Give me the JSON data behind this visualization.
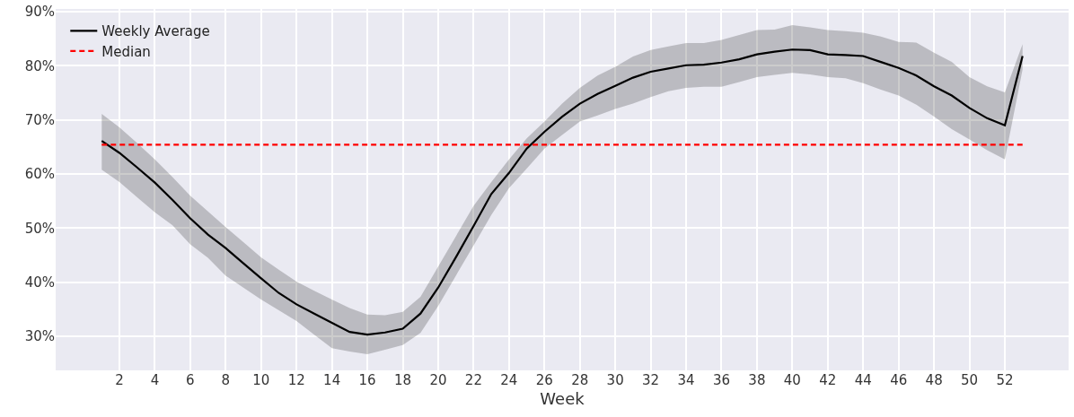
{
  "chart_data": {
    "type": "line",
    "xlabel": "Week",
    "x": [
      1,
      2,
      3,
      4,
      5,
      6,
      7,
      8,
      9,
      10,
      11,
      12,
      13,
      14,
      15,
      16,
      17,
      18,
      19,
      20,
      21,
      22,
      23,
      24,
      25,
      26,
      27,
      28,
      29,
      30,
      31,
      32,
      33,
      34,
      35,
      36,
      37,
      38,
      39,
      40,
      41,
      42,
      43,
      44,
      45,
      46,
      47,
      48,
      49,
      50,
      51,
      52,
      53
    ],
    "series": [
      {
        "name": "Weekly Average",
        "color": "#000000",
        "line_style": "solid",
        "values": [
          66.1,
          63.9,
          61.2,
          58.4,
          55.2,
          51.8,
          48.8,
          46.3,
          43.5,
          40.7,
          38.0,
          35.9,
          34.2,
          32.5,
          30.8,
          30.3,
          30.7,
          31.4,
          34.2,
          39.0,
          44.6,
          50.4,
          56.3,
          60.2,
          64.7,
          67.8,
          70.6,
          73.0,
          74.8,
          76.3,
          77.8,
          78.9,
          79.5,
          80.1,
          80.2,
          80.6,
          81.2,
          82.1,
          82.6,
          83.0,
          82.9,
          82.1,
          82.0,
          81.8,
          80.7,
          79.6,
          78.2,
          76.2,
          74.5,
          72.2,
          70.3,
          69.0,
          81.8
        ],
        "upper": [
          71.1,
          68.6,
          65.7,
          62.7,
          59.4,
          56.0,
          53.1,
          50.2,
          47.4,
          44.6,
          42.3,
          40.1,
          38.4,
          36.8,
          35.2,
          34.0,
          33.9,
          34.5,
          37.3,
          42.9,
          48.5,
          54.1,
          58.5,
          62.7,
          66.6,
          69.7,
          73.0,
          75.9,
          78.2,
          79.8,
          81.7,
          82.9,
          83.6,
          84.2,
          84.2,
          84.8,
          85.7,
          86.6,
          86.7,
          87.5,
          87.1,
          86.6,
          86.4,
          86.1,
          85.4,
          84.4,
          84.3,
          82.4,
          80.7,
          77.9,
          76.2,
          75.1,
          84.0
        ],
        "lower": [
          60.8,
          58.5,
          55.7,
          52.9,
          50.5,
          47.0,
          44.5,
          41.2,
          39.0,
          36.8,
          34.8,
          32.8,
          30.3,
          27.8,
          27.2,
          26.7,
          27.5,
          28.4,
          30.6,
          35.6,
          41.2,
          46.8,
          52.4,
          57.4,
          61.0,
          64.7,
          67.2,
          69.7,
          70.8,
          72.0,
          73.0,
          74.2,
          75.3,
          75.9,
          76.1,
          76.1,
          77.0,
          77.9,
          78.3,
          78.7,
          78.4,
          77.9,
          77.7,
          76.8,
          75.6,
          74.5,
          72.8,
          70.6,
          68.3,
          66.4,
          64.4,
          62.7,
          79.3
        ]
      },
      {
        "name": "Median",
        "color": "#ff0000",
        "line_style": "dashed",
        "x": [
          1,
          53
        ],
        "values": [
          65.4,
          65.4
        ]
      }
    ],
    "xlim": [
      -1.6,
      55.6
    ],
    "ylim": [
      23.7,
      90.5
    ],
    "xticks": [
      2,
      4,
      6,
      8,
      10,
      12,
      14,
      16,
      18,
      20,
      22,
      24,
      26,
      28,
      30,
      32,
      34,
      36,
      38,
      40,
      42,
      44,
      46,
      48,
      50,
      52
    ],
    "yticks": [
      {
        "value": 30,
        "label": "30%"
      },
      {
        "value": 40,
        "label": "40%"
      },
      {
        "value": 50,
        "label": "50%"
      },
      {
        "value": 60,
        "label": "60%"
      },
      {
        "value": 70,
        "label": "70%"
      },
      {
        "value": 80,
        "label": "80%"
      },
      {
        "value": 90,
        "label": "90%"
      }
    ],
    "grid": true,
    "legend": "top left",
    "marker": "none"
  }
}
